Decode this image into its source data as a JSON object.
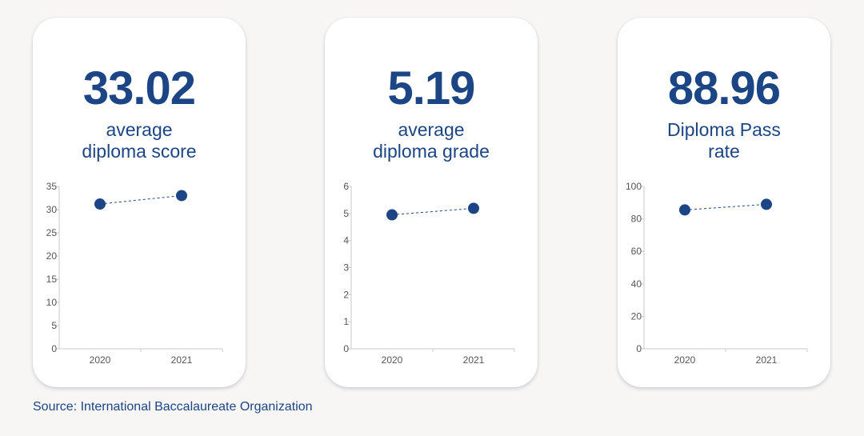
{
  "cards": [
    {
      "value": "33.02",
      "caption": [
        "average",
        "diploma score"
      ]
    },
    {
      "value": "5.19",
      "caption": [
        "average",
        "diploma grade"
      ]
    },
    {
      "value": "88.96",
      "caption": [
        "Diploma Pass",
        "rate"
      ]
    }
  ],
  "source": "Source: International Baccalaureate Organization",
  "colors": {
    "accent": "#1b4585",
    "axis": "#c8c8c8",
    "tick_text": "#555555"
  },
  "chart_data": [
    {
      "type": "line",
      "categories": [
        "2020",
        "2021"
      ],
      "values": [
        31.2,
        33.02
      ],
      "ylim": [
        0,
        35
      ],
      "yticks": [
        0,
        5,
        10,
        15,
        20,
        25,
        30,
        35
      ],
      "line_style": "dashed",
      "grid": false
    },
    {
      "type": "line",
      "categories": [
        "2020",
        "2021"
      ],
      "values": [
        4.95,
        5.19
      ],
      "ylim": [
        0,
        6
      ],
      "yticks": [
        0,
        1,
        2,
        3,
        4,
        5,
        6
      ],
      "line_style": "dashed",
      "grid": false
    },
    {
      "type": "line",
      "categories": [
        "2020",
        "2021"
      ],
      "values": [
        85.5,
        88.96
      ],
      "ylim": [
        0,
        100
      ],
      "yticks": [
        0,
        20,
        40,
        60,
        80,
        100
      ],
      "line_style": "dashed",
      "grid": false
    }
  ]
}
